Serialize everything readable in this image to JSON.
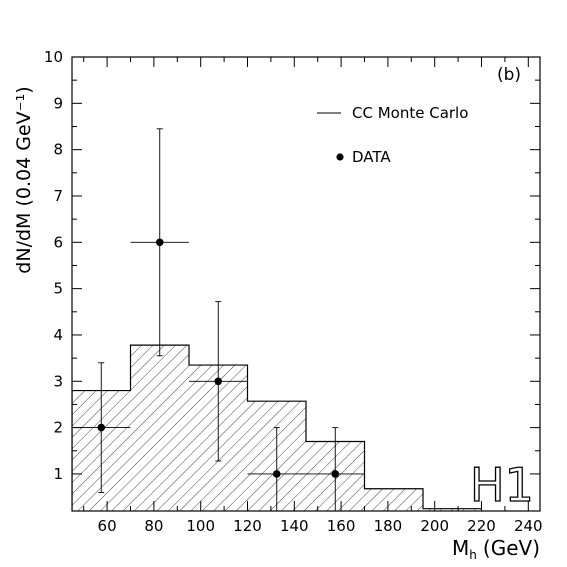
{
  "chart_data": {
    "type": "bar",
    "panel_label": "(b)",
    "watermark": "H1",
    "xlabel": "M_h (GeV)",
    "xlabel_main": "M",
    "xlabel_sub": "h",
    "xlabel_unit": "(GeV)",
    "ylabel": "dN/dM  (0.04 GeV⁻¹)",
    "xlim": [
      45,
      245
    ],
    "ylim": [
      0.2,
      10
    ],
    "xticks": [
      60,
      80,
      100,
      120,
      140,
      160,
      180,
      200,
      220,
      240
    ],
    "yticks": [
      1,
      2,
      3,
      4,
      5,
      6,
      7,
      8,
      9,
      10
    ],
    "legend": [
      {
        "label": "CC Monte Carlo",
        "marker": "hatch"
      },
      {
        "label": "DATA",
        "marker": "dot"
      }
    ],
    "mc_histogram": {
      "name": "CC Monte Carlo",
      "bins": [
        {
          "x0": 45,
          "x1": 70,
          "value": 2.8
        },
        {
          "x0": 70,
          "x1": 95,
          "value": 3.78
        },
        {
          "x0": 95,
          "x1": 120,
          "value": 3.35
        },
        {
          "x0": 120,
          "x1": 145,
          "value": 2.57
        },
        {
          "x0": 145,
          "x1": 170,
          "value": 1.7
        },
        {
          "x0": 170,
          "x1": 195,
          "value": 0.68
        },
        {
          "x0": 195,
          "x1": 220,
          "value": 0.25
        }
      ]
    },
    "data_points": {
      "name": "DATA",
      "points": [
        {
          "x": 57.5,
          "y": 2,
          "x_err": 12.5,
          "y_low": 0.6,
          "y_high": 3.4
        },
        {
          "x": 82.5,
          "y": 6,
          "x_err": 12.5,
          "y_low": 3.55,
          "y_high": 8.45
        },
        {
          "x": 107.5,
          "y": 3,
          "x_err": 12.5,
          "y_low": 1.28,
          "y_high": 4.72
        },
        {
          "x": 132.5,
          "y": 1,
          "x_err": 12.5,
          "y_low": 0.2,
          "y_high": 2.0
        },
        {
          "x": 157.5,
          "y": 1,
          "x_err": 12.5,
          "y_low": 0.2,
          "y_high": 2.0
        }
      ]
    }
  }
}
